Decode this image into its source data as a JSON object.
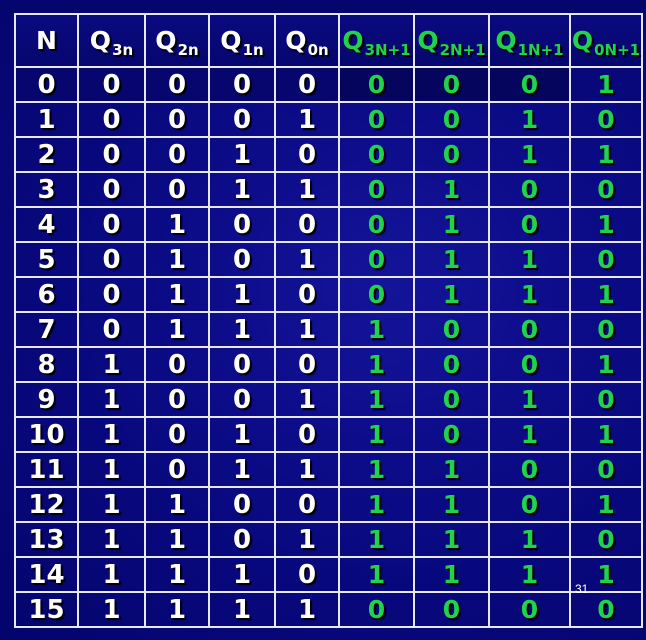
{
  "header": {
    "n": "N",
    "q3n": {
      "base": "Q",
      "sub": "3n"
    },
    "q2n": {
      "base": "Q",
      "sub": "2n"
    },
    "q1n": {
      "base": "Q",
      "sub": "1n"
    },
    "q0n": {
      "base": "Q",
      "sub": "0n"
    },
    "q3next": {
      "base": "Q",
      "sub": "3N+1"
    },
    "q2next": {
      "base": "Q",
      "sub": "2N+1"
    },
    "q1next": {
      "base": "Q",
      "sub": "1N+1"
    },
    "q0next": {
      "base": "Q",
      "sub": "0N+1"
    }
  },
  "rows": [
    [
      "0",
      "0",
      "0",
      "0",
      "0",
      "0",
      "0",
      "0",
      "1"
    ],
    [
      "1",
      "0",
      "0",
      "0",
      "1",
      "0",
      "0",
      "1",
      "0"
    ],
    [
      "2",
      "0",
      "0",
      "1",
      "0",
      "0",
      "0",
      "1",
      "1"
    ],
    [
      "3",
      "0",
      "0",
      "1",
      "1",
      "0",
      "1",
      "0",
      "0"
    ],
    [
      "4",
      "0",
      "1",
      "0",
      "0",
      "0",
      "1",
      "0",
      "1"
    ],
    [
      "5",
      "0",
      "1",
      "0",
      "1",
      "0",
      "1",
      "1",
      "0"
    ],
    [
      "6",
      "0",
      "1",
      "1",
      "0",
      "0",
      "1",
      "1",
      "1"
    ],
    [
      "7",
      "0",
      "1",
      "1",
      "1",
      "1",
      "0",
      "0",
      "0"
    ],
    [
      "8",
      "1",
      "0",
      "0",
      "0",
      "1",
      "0",
      "0",
      "1"
    ],
    [
      "9",
      "1",
      "0",
      "0",
      "1",
      "1",
      "0",
      "1",
      "0"
    ],
    [
      "10",
      "1",
      "0",
      "1",
      "0",
      "1",
      "0",
      "1",
      "1"
    ],
    [
      "11",
      "1",
      "0",
      "1",
      "1",
      "1",
      "1",
      "0",
      "0"
    ],
    [
      "12",
      "1",
      "1",
      "0",
      "0",
      "1",
      "1",
      "0",
      "1"
    ],
    [
      "13",
      "1",
      "1",
      "0",
      "1",
      "1",
      "1",
      "1",
      "0"
    ],
    [
      "14",
      "1",
      "1",
      "1",
      "0",
      "1",
      "1",
      "1",
      "1"
    ],
    [
      "15",
      "1",
      "1",
      "1",
      "1",
      "0",
      "0",
      "0",
      "0"
    ]
  ],
  "page_number": "31",
  "colors": {
    "background": "#0a0a84",
    "current_state_text": "#ffffff",
    "next_state_text": "#22d24a",
    "grid": "#e8e8f4"
  }
}
